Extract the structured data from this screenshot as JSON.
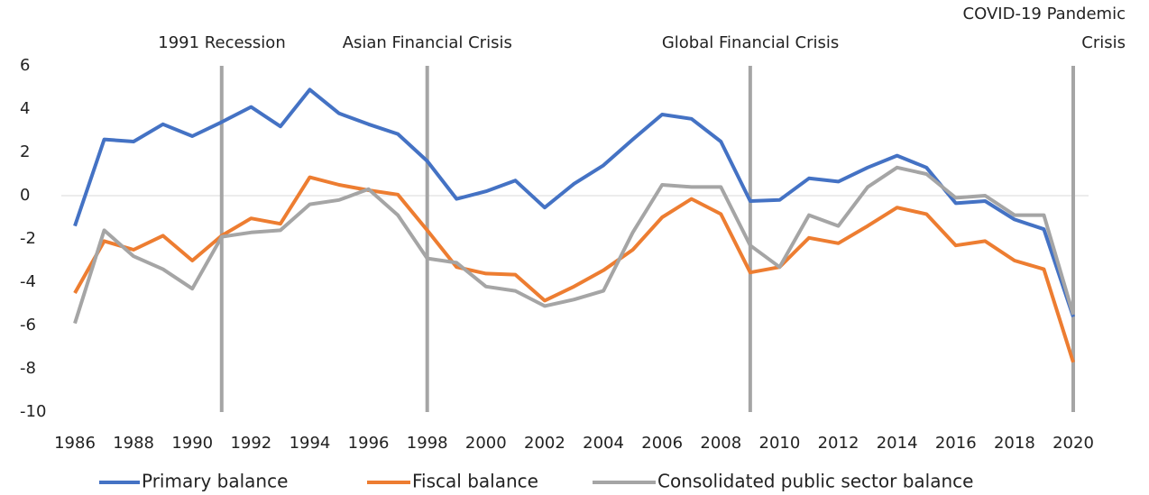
{
  "chart_data": {
    "type": "line",
    "x": [
      1986,
      1987,
      1988,
      1989,
      1990,
      1991,
      1992,
      1993,
      1994,
      1995,
      1996,
      1997,
      1998,
      1999,
      2000,
      2001,
      2002,
      2003,
      2004,
      2005,
      2006,
      2007,
      2008,
      2009,
      2010,
      2011,
      2012,
      2013,
      2014,
      2015,
      2016,
      2017,
      2018,
      2019,
      2020
    ],
    "series": [
      {
        "name": "Primary balance",
        "color": "#4472c4",
        "values": [
          -1.4,
          2.6,
          2.5,
          3.3,
          2.75,
          3.4,
          4.1,
          3.2,
          4.9,
          3.8,
          3.3,
          2.85,
          1.6,
          -0.15,
          0.2,
          0.7,
          -0.55,
          0.55,
          1.4,
          2.6,
          3.75,
          3.55,
          2.5,
          -0.25,
          -0.2,
          0.8,
          0.65,
          1.3,
          1.85,
          1.3,
          -0.35,
          -0.25,
          -1.1,
          -1.55,
          -5.6
        ]
      },
      {
        "name": "Fiscal balance",
        "color": "#ed7d31",
        "values": [
          -4.5,
          -2.1,
          -2.5,
          -1.85,
          -3.0,
          -1.85,
          -1.05,
          -1.3,
          0.85,
          0.5,
          0.25,
          0.05,
          -1.6,
          -3.3,
          -3.6,
          -3.65,
          -4.85,
          -4.2,
          -3.45,
          -2.5,
          -1.0,
          -0.15,
          -0.85,
          -3.55,
          -3.3,
          -1.95,
          -2.2,
          -1.4,
          -0.55,
          -0.85,
          -2.3,
          -2.1,
          -3.0,
          -3.4,
          -7.7
        ]
      },
      {
        "name": "Consolidated public sector balance",
        "color": "#a5a5a5",
        "values": [
          -5.9,
          -1.6,
          -2.8,
          -3.4,
          -4.3,
          -1.9,
          -1.7,
          -1.6,
          -0.4,
          -0.2,
          0.3,
          -0.9,
          -2.9,
          -3.1,
          -4.2,
          -4.4,
          -5.1,
          -4.8,
          -4.4,
          -1.7,
          0.5,
          0.4,
          0.4,
          -2.3,
          -3.3,
          -0.9,
          -1.4,
          0.4,
          1.3,
          1.0,
          -0.1,
          0.0,
          -0.9,
          -0.9,
          -5.5
        ]
      }
    ],
    "xlim": [
      1986,
      2020
    ],
    "xticks": [
      1986,
      1988,
      1990,
      1992,
      1994,
      1996,
      1998,
      2000,
      2002,
      2004,
      2006,
      2008,
      2010,
      2012,
      2014,
      2016,
      2018,
      2020
    ],
    "ylim": [
      -10,
      6
    ],
    "yticks": [
      -10,
      -8,
      -6,
      -4,
      -2,
      0,
      2,
      4,
      6
    ],
    "annotations": [
      {
        "x": 1991,
        "text": "1991 Recession"
      },
      {
        "x": 1998,
        "text": "Asian Financial Crisis"
      },
      {
        "x": 2009,
        "text": "Global Financial Crisis"
      },
      {
        "x": 2020,
        "text": "COVID-19 Pandemic Crisis"
      }
    ],
    "legend": "bottom"
  }
}
